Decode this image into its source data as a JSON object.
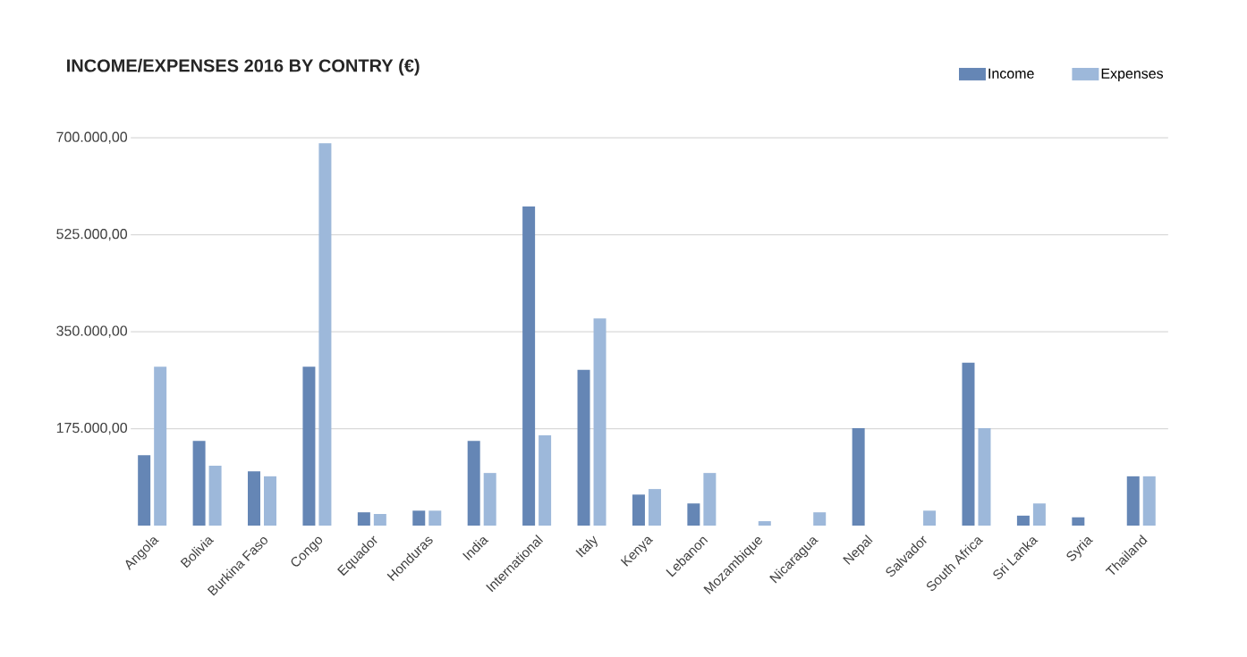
{
  "chart_data": {
    "type": "bar",
    "title": "INCOME/EXPENSES 2016 BY CONTRY (€)",
    "categories": [
      "Angola",
      "Bolivia",
      "Burkina Faso",
      "Congo",
      "Equador",
      "Honduras",
      "India",
      "International",
      "Italy",
      "Kenya",
      "Lebanon",
      "Mozambique",
      "Nicaragua",
      "Nepal",
      "Salvador",
      "South Africa",
      "Sri Lanka",
      "Syria",
      "Thailand"
    ],
    "series": [
      {
        "name": "Income",
        "color": "#6586b5",
        "values": [
          127000,
          153000,
          98000,
          287000,
          24000,
          27000,
          153000,
          576000,
          281000,
          56000,
          40000,
          null,
          null,
          176000,
          null,
          294000,
          18000,
          15000,
          89000
        ]
      },
      {
        "name": "Expenses",
        "color": "#9db8da",
        "values": [
          287000,
          108000,
          89000,
          690000,
          21000,
          27000,
          95000,
          163000,
          374000,
          66000,
          95000,
          8000,
          24000,
          null,
          27000,
          176000,
          40000,
          null,
          89000
        ]
      }
    ],
    "ylim": [
      0,
      700000
    ],
    "yticks": [
      {
        "value": 175000,
        "label": "175.000,00"
      },
      {
        "value": 350000,
        "label": "350.000,00"
      },
      {
        "value": 525000,
        "label": "525.000,00"
      },
      {
        "value": 700000,
        "label": "700.000,00"
      }
    ],
    "grid": "y",
    "legend": "top right"
  }
}
